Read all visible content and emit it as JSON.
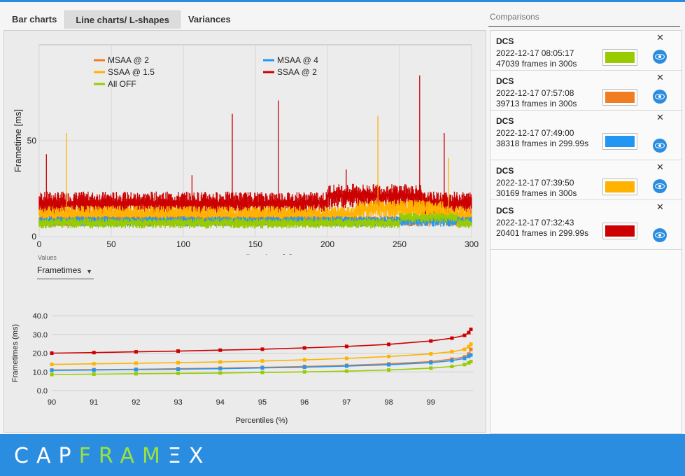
{
  "tabs": [
    "Bar charts",
    "Line charts/ L-shapes",
    "Variances"
  ],
  "active_tab": 1,
  "values_dropdown": {
    "label": "Values",
    "selected": "Frametimes"
  },
  "comparisons": {
    "title": "Comparisons",
    "items": [
      {
        "game": "DCS",
        "date": "2022-12-17 08:05:17",
        "frames": "47039 frames in 300s",
        "color": "#99cc00"
      },
      {
        "game": "DCS",
        "date": "2022-12-17 07:57:08",
        "frames": "39713 frames in 300s",
        "color": "#f07d22"
      },
      {
        "game": "DCS",
        "date": "2022-12-17 07:49:00",
        "frames": "38318 frames in 299.99s",
        "color": "#2196f3"
      },
      {
        "game": "DCS",
        "date": "2022-12-17 07:39:50",
        "frames": "30169 frames in 300s",
        "color": "#ffb300"
      },
      {
        "game": "DCS",
        "date": "2022-12-17 07:32:43",
        "frames": "20401 frames in 299.99s",
        "color": "#cc0000"
      }
    ]
  },
  "logo": {
    "part1": "CAP",
    "part2": "FRAM",
    "part3": "Ξ",
    "part4": "X"
  },
  "chart_data": [
    {
      "type": "line",
      "title": "",
      "xlabel": "Recording time [s]",
      "ylabel": "Frametime [ms]",
      "xlim": [
        0,
        300
      ],
      "ylim": [
        0,
        100
      ],
      "x_ticks": [
        0,
        50,
        100,
        150,
        200,
        250,
        300
      ],
      "y_ticks": [
        0,
        50
      ],
      "legend": "top-left",
      "series": [
        {
          "name": "MSAA @ 2",
          "color": "#f07d22",
          "base": 8,
          "noise": 2,
          "spikes": []
        },
        {
          "name": "MSAA @ 4",
          "color": "#2196f3",
          "base": 8,
          "noise": 2,
          "spikes": []
        },
        {
          "name": "SSAA @ 1.5",
          "color": "#ffb300",
          "base": 11,
          "noise": 4,
          "spikes": [
            [
              19,
              54
            ],
            [
              235,
              63
            ],
            [
              284,
              41
            ]
          ]
        },
        {
          "name": "SSAA @ 2",
          "color": "#cc0000",
          "base": 17,
          "noise": 5,
          "spikes": [
            [
              5,
              43
            ],
            [
              134,
              64
            ],
            [
              166,
              71
            ],
            [
              264,
              84
            ],
            [
              281,
              54
            ],
            [
              106,
              32
            ],
            [
              213,
              35
            ]
          ]
        },
        {
          "name": "All OFF",
          "color": "#99cc00",
          "base": 7,
          "noise": 2,
          "spikes": []
        }
      ]
    },
    {
      "type": "line",
      "title": "",
      "xlabel": "Percentiles (%)",
      "ylabel": "Frametimes (ms)",
      "xlim": [
        90,
        100
      ],
      "ylim": [
        0,
        40
      ],
      "x_ticks": [
        90,
        91,
        92,
        93,
        94,
        95,
        96,
        97,
        98,
        99
      ],
      "y_ticks": [
        "0.0",
        "10.0",
        "20.0",
        "30.0",
        "40.0"
      ],
      "x": [
        90,
        91,
        92,
        93,
        94,
        95,
        96,
        97,
        98,
        99,
        99.5,
        99.8,
        99.9,
        99.95
      ],
      "series": [
        {
          "name": "SSAA @ 2",
          "color": "#cc0000",
          "values": [
            20.0,
            20.3,
            20.7,
            21.1,
            21.6,
            22.1,
            22.8,
            23.6,
            24.7,
            26.5,
            28.0,
            29.5,
            31.0,
            32.7
          ]
        },
        {
          "name": "SSAA @ 1.5",
          "color": "#ffb300",
          "values": [
            14.0,
            14.3,
            14.6,
            14.9,
            15.3,
            15.8,
            16.4,
            17.2,
            18.2,
            19.6,
            20.8,
            22.0,
            23.5,
            24.8
          ]
        },
        {
          "name": "MSAA @ 2",
          "color": "#f07d22",
          "values": [
            11.0,
            11.2,
            11.4,
            11.7,
            12.0,
            12.4,
            12.9,
            13.5,
            14.3,
            15.5,
            16.8,
            18.0,
            19.5,
            22.0
          ]
        },
        {
          "name": "MSAA @ 4",
          "color": "#2196f3",
          "values": [
            10.8,
            11.0,
            11.2,
            11.4,
            11.7,
            12.1,
            12.5,
            13.1,
            13.8,
            14.9,
            16.0,
            17.2,
            18.3,
            19.0
          ]
        },
        {
          "name": "All OFF",
          "color": "#99cc00",
          "values": [
            8.6,
            8.8,
            9.0,
            9.2,
            9.4,
            9.7,
            10.0,
            10.4,
            11.0,
            12.0,
            12.9,
            13.9,
            14.8,
            15.5
          ]
        }
      ]
    }
  ]
}
